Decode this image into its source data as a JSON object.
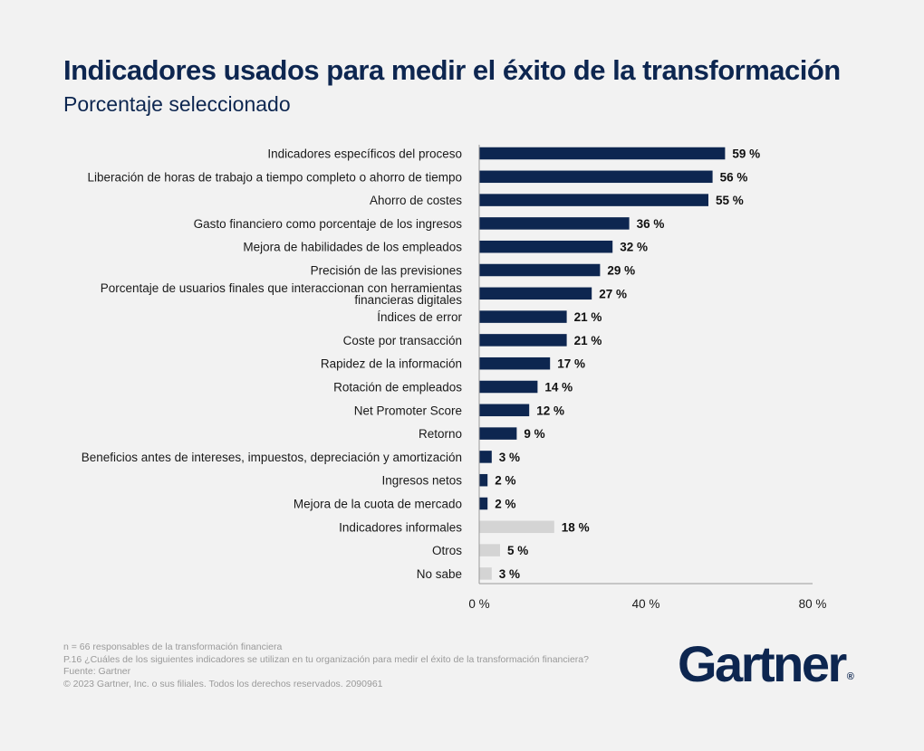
{
  "title": "Indicadores usados para medir el éxito de la transformación",
  "subtitle": "Porcentaje seleccionado",
  "colors": {
    "primary": "#0d2650",
    "secondary": "#d4d4d4",
    "background": "#f2f2f2"
  },
  "chart_data": {
    "type": "bar",
    "orientation": "horizontal",
    "categories": [
      "Indicadores específicos del proceso",
      "Liberación de horas de trabajo a tiempo completo o ahorro de tiempo",
      "Ahorro de costes",
      "Gasto financiero como porcentaje de los ingresos",
      "Mejora de habilidades de los empleados",
      "Precisión de las previsiones",
      [
        "Porcentaje de usuarios finales que interaccionan con herramientas",
        "financieras digitales"
      ],
      "Índices de error",
      "Coste por transacción",
      "Rapidez de la información",
      "Rotación de empleados",
      "Net Promoter Score",
      "Retorno",
      "Beneficios antes de intereses, impuestos, depreciación y amortización",
      "Ingresos netos",
      "Mejora de la cuota de mercado",
      "Indicadores informales",
      "Otros",
      "No sabe"
    ],
    "values": [
      59,
      56,
      55,
      36,
      32,
      29,
      27,
      21,
      21,
      17,
      14,
      12,
      9,
      3,
      2,
      2,
      18,
      5,
      3
    ],
    "value_labels": [
      "59 %",
      "56 %",
      "55 %",
      "36 %",
      "32 %",
      "29 %",
      "27 %",
      "21 %",
      "21 %",
      "17 %",
      "14 %",
      "12 %",
      "9 %",
      "3 %",
      "2 %",
      "2 %",
      "18 %",
      "5 %",
      "3 %"
    ],
    "bar_group": [
      "primary",
      "primary",
      "primary",
      "primary",
      "primary",
      "primary",
      "primary",
      "primary",
      "primary",
      "primary",
      "primary",
      "primary",
      "primary",
      "primary",
      "primary",
      "primary",
      "secondary",
      "secondary",
      "secondary"
    ],
    "xlim": [
      0,
      80
    ],
    "x_ticks": [
      0,
      40,
      80
    ],
    "x_tick_labels": [
      "0 %",
      "40 %",
      "80 %"
    ],
    "grid": false,
    "legend": "none"
  },
  "footnotes": [
    "n = 66 responsables de la transformación financiera",
    "P.16 ¿Cuáles de los siguientes indicadores se utilizan en tu organización para medir el éxito de la transformación financiera?",
    "Fuente: Gartner",
    "© 2023 Gartner, Inc. o sus filiales. Todos los derechos reservados. 2090961"
  ],
  "logo": {
    "text": "Gartner",
    "mark": "®"
  }
}
